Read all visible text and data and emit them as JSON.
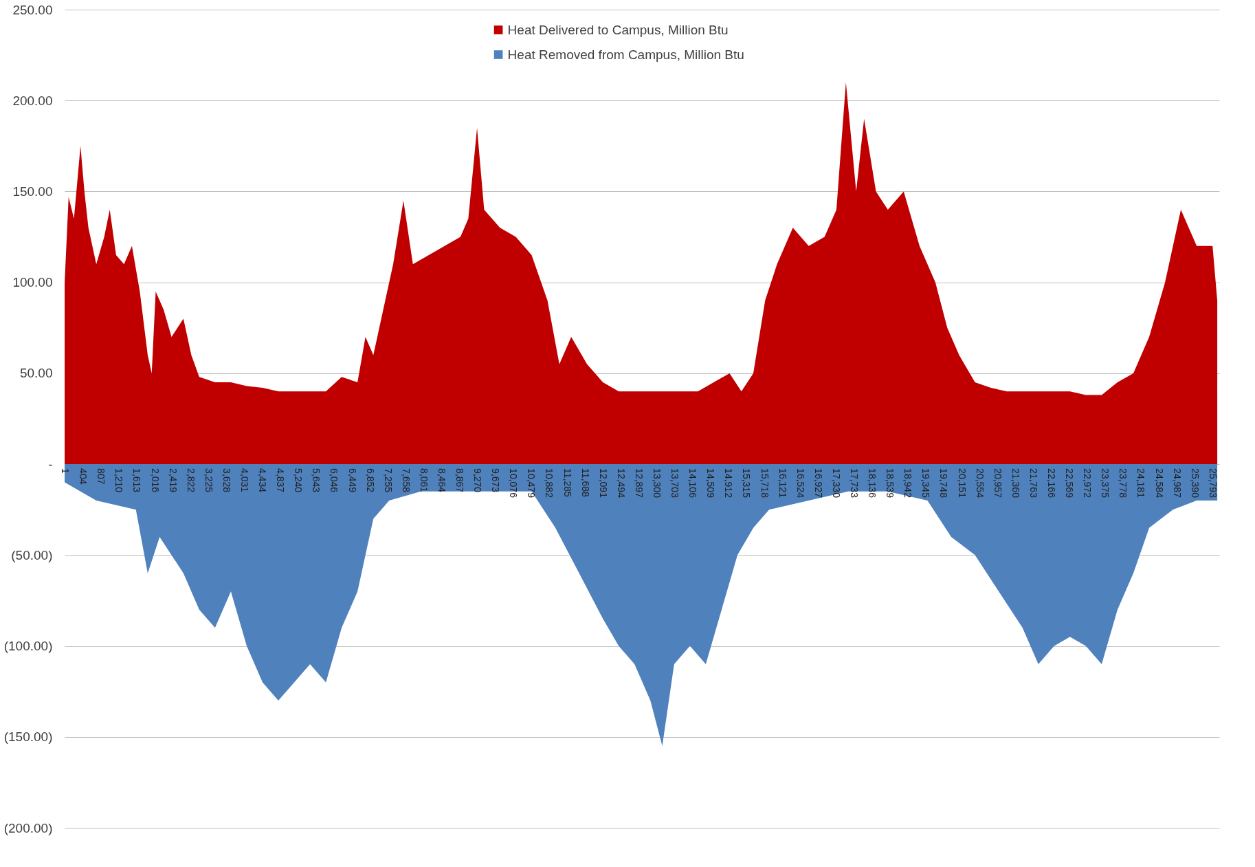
{
  "chart_data": {
    "type": "area",
    "xlim": [
      0,
      25950
    ],
    "xticks": [
      {
        "value": 1,
        "label": "1"
      },
      {
        "value": 404,
        "label": "404"
      },
      {
        "value": 807,
        "label": "807"
      },
      {
        "value": 1210,
        "label": "1,210"
      },
      {
        "value": 1613,
        "label": "1,613"
      },
      {
        "value": 2016,
        "label": "2,016"
      },
      {
        "value": 2419,
        "label": "2,419"
      },
      {
        "value": 2822,
        "label": "2,822"
      },
      {
        "value": 3225,
        "label": "3,225"
      },
      {
        "value": 3628,
        "label": "3,628"
      },
      {
        "value": 4031,
        "label": "4,031"
      },
      {
        "value": 4434,
        "label": "4,434"
      },
      {
        "value": 4837,
        "label": "4,837"
      },
      {
        "value": 5240,
        "label": "5,240"
      },
      {
        "value": 5643,
        "label": "5,643"
      },
      {
        "value": 6046,
        "label": "6,046"
      },
      {
        "value": 6449,
        "label": "6,449"
      },
      {
        "value": 6852,
        "label": "6,852"
      },
      {
        "value": 7255,
        "label": "7,255"
      },
      {
        "value": 7658,
        "label": "7,658"
      },
      {
        "value": 8061,
        "label": "8,061"
      },
      {
        "value": 8464,
        "label": "8,464"
      },
      {
        "value": 8867,
        "label": "8,867"
      },
      {
        "value": 9270,
        "label": "9,270"
      },
      {
        "value": 9673,
        "label": "9,673"
      },
      {
        "value": 10076,
        "label": "10,076"
      },
      {
        "value": 10479,
        "label": "10,479"
      },
      {
        "value": 10882,
        "label": "10,882"
      },
      {
        "value": 11285,
        "label": "11,285"
      },
      {
        "value": 11688,
        "label": "11,688"
      },
      {
        "value": 12091,
        "label": "12,091"
      },
      {
        "value": 12494,
        "label": "12,494"
      },
      {
        "value": 12897,
        "label": "12,897"
      },
      {
        "value": 13300,
        "label": "13,300"
      },
      {
        "value": 13703,
        "label": "13,703"
      },
      {
        "value": 14106,
        "label": "14,106"
      },
      {
        "value": 14509,
        "label": "14,509"
      },
      {
        "value": 14912,
        "label": "14,912"
      },
      {
        "value": 15315,
        "label": "15,315"
      },
      {
        "value": 15718,
        "label": "15,718"
      },
      {
        "value": 16121,
        "label": "16,121"
      },
      {
        "value": 16524,
        "label": "16,524"
      },
      {
        "value": 16927,
        "label": "16,927"
      },
      {
        "value": 17330,
        "label": "17,330"
      },
      {
        "value": 17733,
        "label": "17,733"
      },
      {
        "value": 18136,
        "label": "18,136"
      },
      {
        "value": 18539,
        "label": "18,539"
      },
      {
        "value": 18942,
        "label": "18,942"
      },
      {
        "value": 19345,
        "label": "19,345"
      },
      {
        "value": 19748,
        "label": "19,748"
      },
      {
        "value": 20151,
        "label": "20,151"
      },
      {
        "value": 20554,
        "label": "20,554"
      },
      {
        "value": 20957,
        "label": "20,957"
      },
      {
        "value": 21360,
        "label": "21,360"
      },
      {
        "value": 21763,
        "label": "21,763"
      },
      {
        "value": 22166,
        "label": "22,166"
      },
      {
        "value": 22569,
        "label": "22,569"
      },
      {
        "value": 22972,
        "label": "22,972"
      },
      {
        "value": 23375,
        "label": "23,375"
      },
      {
        "value": 23778,
        "label": "23,778"
      },
      {
        "value": 24181,
        "label": "24,181"
      },
      {
        "value": 24584,
        "label": "24,584"
      },
      {
        "value": 24987,
        "label": "24,987"
      },
      {
        "value": 25390,
        "label": "25,390"
      },
      {
        "value": 25793,
        "label": "25,793"
      }
    ],
    "ylim": [
      -200,
      250
    ],
    "yticks": [
      {
        "value": 250,
        "label": "250.00"
      },
      {
        "value": 200,
        "label": "200.00"
      },
      {
        "value": 150,
        "label": "150.00"
      },
      {
        "value": 100,
        "label": "100.00"
      },
      {
        "value": 50,
        "label": "50.00"
      },
      {
        "value": 0,
        "label": "-"
      },
      {
        "value": -50,
        "label": "(50.00)"
      },
      {
        "value": -100,
        "label": "(100.00)"
      },
      {
        "value": -150,
        "label": "(150.00)"
      },
      {
        "value": -200,
        "label": "(200.00)"
      }
    ],
    "grid": "y",
    "legend": "top",
    "series": [
      {
        "name": "Heat Delivered to Campus, Million Btu",
        "color": "#c00000",
        "x": [
          1,
          90,
          210,
          357,
          445,
          535,
          712,
          890,
          1015,
          1157,
          1335,
          1513,
          1690,
          1868,
          1958,
          2047,
          2225,
          2403,
          2670,
          2848,
          3026,
          3381,
          3737,
          4093,
          4449,
          4804,
          5160,
          5516,
          5872,
          6227,
          6583,
          6761,
          6939,
          7206,
          7384,
          7615,
          7828,
          8184,
          8540,
          8896,
          9073,
          9269,
          9429,
          9785,
          10140,
          10496,
          10852,
          11119,
          11386,
          11742,
          12098,
          12453,
          12809,
          13165,
          13521,
          13876,
          14232,
          14588,
          14944,
          15211,
          15478,
          15744,
          16011,
          16367,
          16723,
          17079,
          17346,
          17559,
          17790,
          17968,
          18235,
          18502,
          18858,
          19214,
          19570,
          19837,
          20104,
          20460,
          20816,
          21172,
          21528,
          21884,
          22240,
          22595,
          22951,
          23307,
          23663,
          24019,
          24375,
          24731,
          25087,
          25443,
          25799,
          25905
        ],
        "values": [
          100,
          147,
          135,
          175,
          150,
          130,
          110,
          125,
          140,
          115,
          110,
          120,
          95,
          60,
          50,
          95,
          85,
          70,
          80,
          60,
          48,
          45,
          45,
          43,
          42,
          40,
          40,
          40,
          40,
          48,
          45,
          70,
          60,
          90,
          110,
          145,
          110,
          115,
          120,
          125,
          135,
          185,
          140,
          130,
          125,
          115,
          90,
          55,
          70,
          55,
          45,
          40,
          40,
          40,
          40,
          40,
          40,
          45,
          50,
          40,
          50,
          90,
          110,
          130,
          120,
          125,
          140,
          210,
          150,
          190,
          150,
          140,
          150,
          120,
          100,
          75,
          60,
          45,
          42,
          40,
          40,
          40,
          40,
          40,
          38,
          38,
          45,
          50,
          70,
          100,
          140,
          120,
          120,
          90
        ]
      },
      {
        "name": "Heat Removed from Campus, Million Btu",
        "color": "#4f81bd",
        "x": [
          1,
          712,
          1602,
          1868,
          2136,
          2670,
          3026,
          3381,
          3737,
          4093,
          4449,
          4804,
          5160,
          5516,
          5872,
          6227,
          6583,
          6939,
          7295,
          8006,
          8718,
          9607,
          10496,
          11030,
          11564,
          12098,
          12453,
          12809,
          13165,
          13432,
          13699,
          14054,
          14410,
          14766,
          15122,
          15478,
          15834,
          16723,
          17612,
          18502,
          19392,
          19926,
          20460,
          20994,
          21528,
          21884,
          22240,
          22595,
          22951,
          23307,
          23663,
          24019,
          24375,
          24909,
          25443,
          25905
        ],
        "values": [
          -10,
          -20,
          -25,
          -60,
          -40,
          -60,
          -80,
          -90,
          -70,
          -100,
          -120,
          -130,
          -120,
          -110,
          -120,
          -90,
          -70,
          -30,
          -20,
          -15,
          -15,
          -15,
          -15,
          -35,
          -60,
          -85,
          -100,
          -110,
          -130,
          -155,
          -110,
          -100,
          -110,
          -80,
          -50,
          -35,
          -25,
          -20,
          -15,
          -15,
          -20,
          -40,
          -50,
          -70,
          -90,
          -110,
          -100,
          -95,
          -100,
          -110,
          -80,
          -60,
          -35,
          -25,
          -20,
          -20
        ]
      }
    ]
  }
}
